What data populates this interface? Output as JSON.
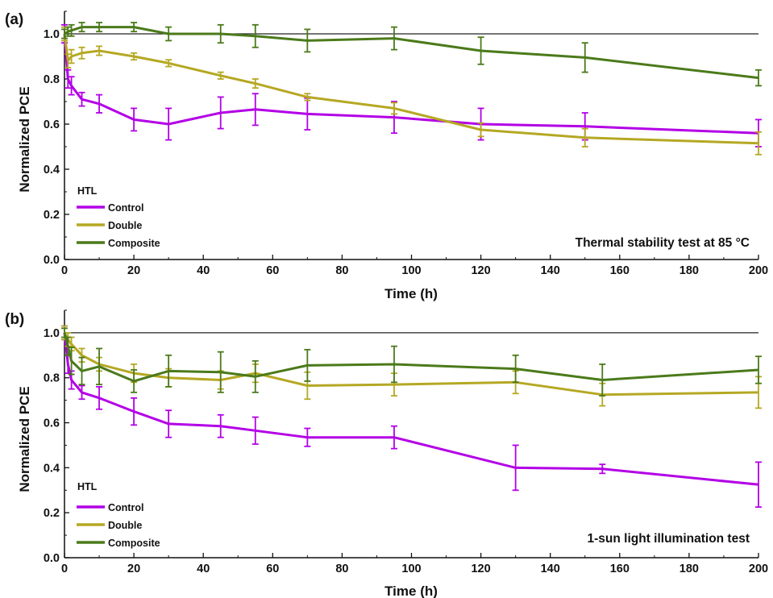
{
  "chart_data": [
    {
      "type": "line",
      "panel_label": "(a)",
      "xlabel": "Time (h)",
      "ylabel": "Normalized PCE",
      "xlim": [
        0,
        200
      ],
      "ylim": [
        0,
        1.1
      ],
      "xticks": [
        0,
        20,
        40,
        60,
        80,
        100,
        120,
        140,
        160,
        180,
        200
      ],
      "yticks": [
        0.0,
        0.2,
        0.4,
        0.6,
        0.8,
        1.0
      ],
      "reference_line": 1.0,
      "annotation": "Thermal stability test at 85 °C",
      "legend": {
        "title": "HTL",
        "position": "bottom-left"
      },
      "series": [
        {
          "name": "Control",
          "color": "#b300e6",
          "x": [
            0,
            1,
            2,
            5,
            10,
            20,
            30,
            45,
            55,
            70,
            95,
            120,
            150,
            200
          ],
          "y": [
            1.0,
            0.8,
            0.77,
            0.71,
            0.69,
            0.62,
            0.6,
            0.65,
            0.665,
            0.645,
            0.63,
            0.6,
            0.59,
            0.56
          ],
          "err": [
            0.04,
            0.04,
            0.04,
            0.03,
            0.04,
            0.05,
            0.07,
            0.07,
            0.07,
            0.07,
            0.07,
            0.07,
            0.06,
            0.06
          ]
        },
        {
          "name": "Double",
          "color": "#b5a823",
          "x": [
            0,
            1,
            2,
            5,
            10,
            20,
            30,
            45,
            55,
            70,
            95,
            120,
            150,
            200
          ],
          "y": [
            1.0,
            0.88,
            0.9,
            0.915,
            0.925,
            0.9,
            0.87,
            0.815,
            0.78,
            0.72,
            0.67,
            0.575,
            0.54,
            0.515
          ],
          "err": [
            0.03,
            0.03,
            0.03,
            0.025,
            0.02,
            0.015,
            0.015,
            0.015,
            0.02,
            0.015,
            0.025,
            0.03,
            0.04,
            0.05
          ]
        },
        {
          "name": "Composite",
          "color": "#4b7a1a",
          "x": [
            0,
            1,
            2,
            5,
            10,
            20,
            30,
            45,
            55,
            70,
            95,
            120,
            150,
            200
          ],
          "y": [
            1.0,
            1.01,
            1.015,
            1.03,
            1.03,
            1.03,
            1.0,
            1.0,
            0.99,
            0.97,
            0.98,
            0.925,
            0.895,
            0.805
          ],
          "err": [
            0.02,
            0.02,
            0.025,
            0.02,
            0.02,
            0.02,
            0.03,
            0.04,
            0.05,
            0.05,
            0.05,
            0.06,
            0.065,
            0.035
          ]
        }
      ]
    },
    {
      "type": "line",
      "panel_label": "(b)",
      "xlabel": "Time (h)",
      "ylabel": "Normalized PCE",
      "xlim": [
        0,
        200
      ],
      "ylim": [
        0,
        1.1
      ],
      "xticks": [
        0,
        20,
        40,
        60,
        80,
        100,
        120,
        140,
        160,
        180,
        200
      ],
      "yticks": [
        0.0,
        0.2,
        0.4,
        0.6,
        0.8,
        1.0
      ],
      "reference_line": 1.0,
      "annotation": "1-sun light illumination test",
      "legend": {
        "title": "HTL",
        "position": "bottom-left"
      },
      "series": [
        {
          "name": "Control",
          "color": "#b300e6",
          "x": [
            0,
            1,
            2,
            5,
            10,
            20,
            30,
            45,
            55,
            70,
            95,
            130,
            155,
            200
          ],
          "y": [
            1.0,
            0.86,
            0.79,
            0.735,
            0.71,
            0.65,
            0.595,
            0.585,
            0.565,
            0.535,
            0.535,
            0.4,
            0.395,
            0.325
          ],
          "err": [
            0.03,
            0.04,
            0.04,
            0.03,
            0.05,
            0.06,
            0.06,
            0.05,
            0.06,
            0.04,
            0.05,
            0.1,
            0.02,
            0.1
          ]
        },
        {
          "name": "Double",
          "color": "#b5a823",
          "x": [
            0,
            1,
            2,
            5,
            10,
            20,
            30,
            45,
            55,
            70,
            95,
            130,
            155,
            200
          ],
          "y": [
            1.0,
            0.97,
            0.95,
            0.9,
            0.86,
            0.82,
            0.8,
            0.79,
            0.82,
            0.765,
            0.77,
            0.78,
            0.725,
            0.735
          ],
          "err": [
            0.03,
            0.03,
            0.03,
            0.03,
            0.03,
            0.04,
            0.04,
            0.04,
            0.04,
            0.06,
            0.05,
            0.05,
            0.05,
            0.07
          ]
        },
        {
          "name": "Composite",
          "color": "#4b7a1a",
          "x": [
            0,
            1,
            2,
            5,
            10,
            20,
            30,
            45,
            55,
            70,
            95,
            130,
            155,
            200
          ],
          "y": [
            1.0,
            0.94,
            0.875,
            0.83,
            0.85,
            0.785,
            0.83,
            0.825,
            0.805,
            0.855,
            0.86,
            0.84,
            0.79,
            0.835
          ],
          "err": [
            0.02,
            0.04,
            0.06,
            0.06,
            0.08,
            0.05,
            0.07,
            0.09,
            0.07,
            0.07,
            0.08,
            0.06,
            0.07,
            0.06
          ]
        }
      ]
    }
  ]
}
